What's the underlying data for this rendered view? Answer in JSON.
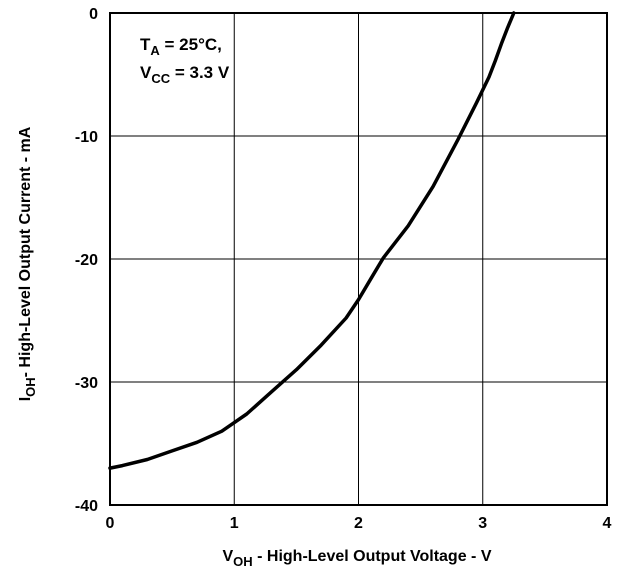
{
  "chart_data": {
    "type": "line",
    "xlabel": {
      "main": "V",
      "sub": "OH",
      "rest": " - High-Level Output Voltage - V"
    },
    "ylabel": {
      "main": "I",
      "sub": "OH",
      "rest": "- High-Level Output Current - mA"
    },
    "xlim": [
      0,
      4
    ],
    "ylim": [
      -40,
      0
    ],
    "xticks": [
      "0",
      "1",
      "2",
      "3",
      "4"
    ],
    "yticks": [
      "0",
      "-10",
      "-20",
      "-30",
      "-40"
    ],
    "grid": true,
    "annotation": {
      "line1": {
        "main": "T",
        "sub": "A",
        "rest": " = 25°C,"
      },
      "line2": {
        "main": "V",
        "sub": "CC",
        "rest": " = 3.3 V"
      }
    },
    "series": [
      {
        "color": "#000000",
        "x": [
          0.0,
          0.1,
          0.3,
          0.5,
          0.7,
          0.9,
          1.0,
          1.1,
          1.3,
          1.5,
          1.7,
          1.9,
          2.0,
          2.1,
          2.2,
          2.4,
          2.6,
          2.8,
          2.95,
          3.05,
          3.1,
          3.15,
          3.2,
          3.25
        ],
        "y": [
          -37.0,
          -36.8,
          -36.3,
          -35.6,
          -34.9,
          -34.0,
          -33.3,
          -32.6,
          -30.8,
          -29.0,
          -27.0,
          -24.8,
          -23.3,
          -21.6,
          -19.9,
          -17.3,
          -14.1,
          -10.3,
          -7.3,
          -5.2,
          -3.9,
          -2.5,
          -1.2,
          0.0
        ]
      }
    ]
  }
}
